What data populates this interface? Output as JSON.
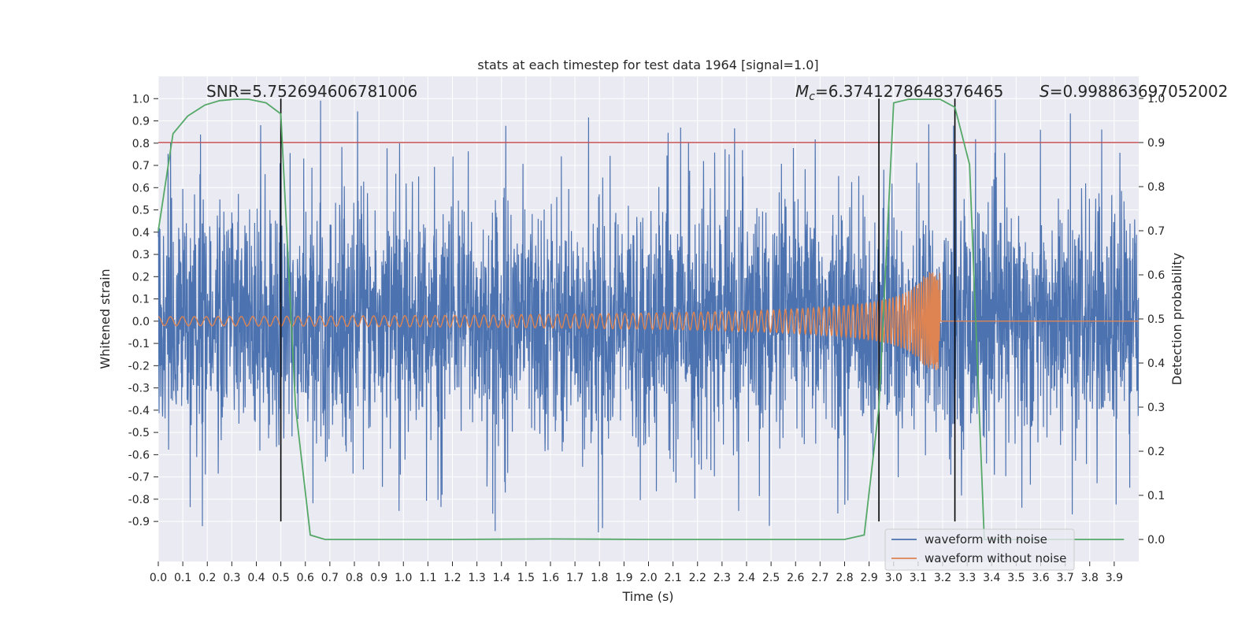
{
  "chart_data": {
    "type": "line",
    "title": "stats at each timestep for test data 1964 [signal=1.0]",
    "xlabel": "Time (s)",
    "ylabel_left": "Whitened strain",
    "ylabel_right": "Detection probability",
    "xlim": [
      0.0,
      4.0
    ],
    "ylim_left": [
      -1.08,
      1.1
    ],
    "ylim_right": [
      -0.05,
      1.05
    ],
    "xticks": [
      0.0,
      0.1,
      0.2,
      0.3,
      0.4,
      0.5,
      0.6,
      0.7,
      0.8,
      0.9,
      1.0,
      1.1,
      1.2,
      1.3,
      1.4,
      1.5,
      1.6,
      1.7,
      1.8,
      1.9,
      2.0,
      2.1,
      2.2,
      2.3,
      2.4,
      2.5,
      2.6,
      2.7,
      2.8,
      2.9,
      3.0,
      3.1,
      3.2,
      3.3,
      3.4,
      3.5,
      3.6,
      3.7,
      3.8,
      3.9
    ],
    "yticks_left": [
      1.0,
      0.9,
      0.8,
      0.7,
      0.6,
      0.5,
      0.4,
      0.3,
      0.2,
      0.1,
      0.0,
      -0.1,
      -0.2,
      -0.3,
      -0.4,
      -0.5,
      -0.6,
      -0.7,
      -0.8,
      -0.9
    ],
    "yticks_right": [
      1.0,
      0.9,
      0.8,
      0.7,
      0.6,
      0.5,
      0.4,
      0.3,
      0.2,
      0.1,
      0.0
    ],
    "grid": true,
    "annotations": {
      "snr": "SNR=5.752694606781006",
      "mc": "=6.3741278648376465",
      "mc_symbol": "M",
      "mc_sub": "c",
      "s": "=0.998863697052002",
      "s_symbol": "S"
    },
    "threshold_right": 0.9,
    "vlines_x": [
      0.5,
      2.94,
      3.25
    ],
    "vline_range_left": [
      -0.9,
      1.0
    ],
    "detection_probability": {
      "name": "detection probability",
      "color": "#55a868",
      "x": [
        0.0,
        0.06,
        0.12,
        0.19,
        0.25,
        0.31,
        0.37,
        0.44,
        0.5,
        0.56,
        0.62,
        0.68,
        0.75,
        0.9,
        1.2,
        1.6,
        2.0,
        2.4,
        2.8,
        2.88,
        2.94,
        3.0,
        3.06,
        3.12,
        3.19,
        3.25,
        3.31,
        3.37,
        3.44,
        3.6,
        3.8,
        3.94
      ],
      "y": [
        0.7,
        0.92,
        0.96,
        0.985,
        0.995,
        0.998,
        0.998,
        0.99,
        0.965,
        0.3,
        0.01,
        0.0,
        0.0,
        0.0,
        0.0,
        0.001,
        0.0,
        0.0,
        0.0,
        0.01,
        0.3,
        0.99,
        0.998,
        0.998,
        0.998,
        0.98,
        0.85,
        0.0,
        0.0,
        0.0,
        0.0,
        0.0
      ]
    },
    "series": [
      {
        "name": "waveform with noise",
        "color": "#4c72b0",
        "noise_amplitude": 0.42,
        "peak_amplitude": 1.0
      },
      {
        "name": "waveform without noise",
        "color": "#dd8452",
        "start_amplitude": 0.02,
        "peak_amplitude": 0.22,
        "merger_time": 3.19
      }
    ],
    "threshold_color": "#c44e52"
  }
}
